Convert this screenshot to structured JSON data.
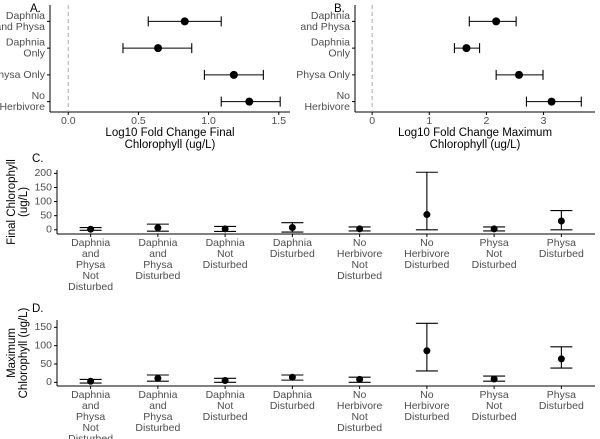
{
  "chart_data": [
    {
      "type": "errorbar",
      "orientation": "horizontal",
      "label": "A.",
      "x_label": "Log10 Fold Change Final Chlorophyll (ug/L)",
      "categories": [
        "Daphnia and Physa",
        "Daphnia Only",
        "Physa Only",
        "No Herbivore"
      ],
      "values": [
        0.83,
        0.64,
        1.18,
        1.29
      ],
      "lower": [
        0.57,
        0.39,
        0.97,
        1.09
      ],
      "upper": [
        1.09,
        0.88,
        1.39,
        1.51
      ],
      "xlim": [
        -0.13,
        1.58
      ],
      "xticks": [
        {
          "value": 0,
          "label": "0.0"
        },
        0.5,
        {
          "value": 1,
          "label": "1.0"
        },
        1.5
      ],
      "refline": 0,
      "color": "#000000"
    },
    {
      "type": "errorbar",
      "orientation": "horizontal",
      "label": "B.",
      "x_label": "Log10 Fold Change Maximum Chlorophyll (ug/L)",
      "categories": [
        "Daphnia and Physa",
        "Daphnia Only",
        "Physa Only",
        "No Herbivore"
      ],
      "values": [
        2.17,
        1.65,
        2.57,
        3.14
      ],
      "lower": [
        1.7,
        1.44,
        2.17,
        2.7
      ],
      "upper": [
        2.52,
        1.88,
        2.99,
        3.66
      ],
      "xlim": [
        -0.3,
        3.9
      ],
      "xticks": [
        0,
        1,
        2,
        3
      ],
      "refline": 0,
      "color": "#000000"
    },
    {
      "type": "errorbar",
      "orientation": "vertical",
      "label": "C.",
      "y_label": "Final Chlorophyll (ug/L)",
      "categories": [
        "Daphnia and Physa Not Disturbed",
        "Daphnia and Physa Disturbed",
        "Daphnia Not Disturbed",
        "Daphnia Disturbed",
        "No Herbivore Not Disturbed",
        "No Herbivore Disturbed",
        "Physa Not Disturbed",
        "Physa Disturbed"
      ],
      "values": [
        2,
        7,
        3,
        8,
        3,
        54,
        3,
        31
      ],
      "lower": [
        -2,
        -5,
        -6,
        -8,
        -4,
        0,
        -4,
        0
      ],
      "upper": [
        8,
        20,
        12,
        25,
        10,
        204,
        10,
        68
      ],
      "ylim": [
        -15,
        212
      ],
      "yticks": [
        0,
        50,
        100,
        150,
        200
      ],
      "color": "#000000"
    },
    {
      "type": "errorbar",
      "orientation": "vertical",
      "label": "D.",
      "y_label": "Maximum Chlorophyll (ug/L)",
      "categories": [
        "Daphnia and Physa Not Disturbed",
        "Daphnia and Physa Disturbed",
        "Daphnia Not Disturbed",
        "Daphnia Disturbed",
        "No Herbivore Not Disturbed",
        "No Herbivore Disturbed",
        "Physa Not Disturbed",
        "Physa Disturbed"
      ],
      "values": [
        3,
        11,
        5,
        14,
        8,
        86,
        9,
        64
      ],
      "lower": [
        -2,
        3,
        0,
        6,
        0,
        31,
        3,
        39
      ],
      "upper": [
        8,
        20,
        11,
        20,
        14,
        161,
        17,
        97
      ],
      "ylim": [
        -10,
        170
      ],
      "yticks": [
        0,
        50,
        100,
        150
      ],
      "color": "#000000"
    }
  ]
}
